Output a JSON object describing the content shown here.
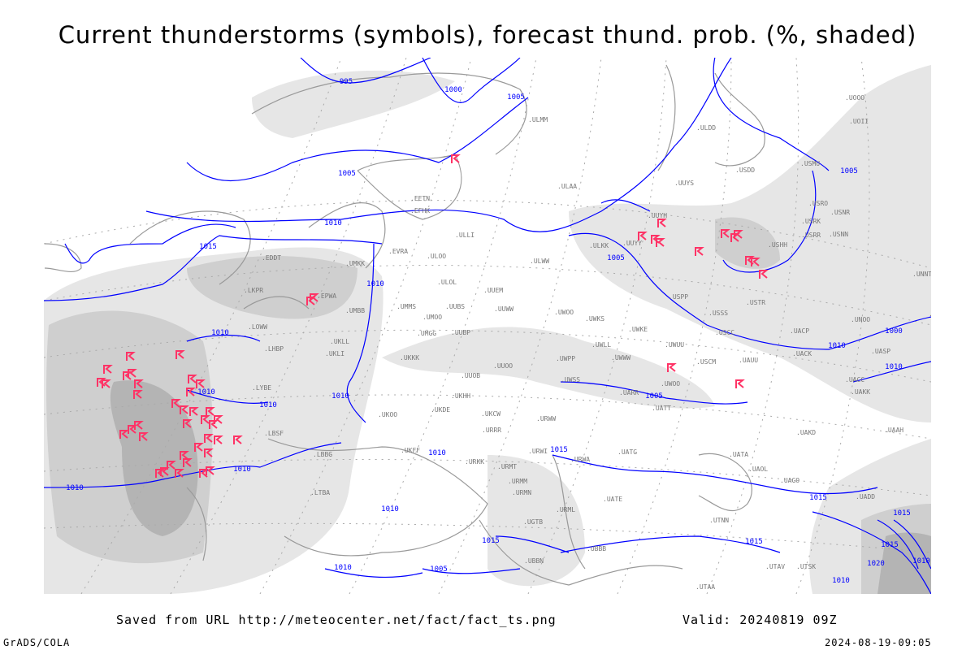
{
  "title": "Current thunderstorms (symbols), forecast thund. prob. (%, shaded)",
  "footer": {
    "source": "Saved from URL http://meteocenter.net/fact/fact_ts.png",
    "valid": "Valid: 20240819 09Z",
    "software": "GrADS/COLA",
    "timestamp": "2024-08-19-09:05"
  },
  "colors": {
    "isobar": "#0000ff",
    "storm_symbol": "#ff3366",
    "shade_light": "#e6e6e6",
    "shade_mid": "#cfcfcf",
    "shade_dark": "#b4b4b4",
    "coast": "#999999",
    "station": "#777777"
  },
  "legend": {
    "isobars_unit": "hPa",
    "symbol": "thunderstorm-icon"
  },
  "isobar_labels": [
    "995",
    "1000",
    "1005",
    "1005",
    "1010",
    "1015",
    "1010",
    "1010",
    "1010",
    "1010",
    "1010",
    "1005",
    "1005",
    "1000",
    "1005",
    "1010",
    "1010",
    "1015",
    "1010",
    "1010",
    "1010",
    "1005",
    "1010",
    "1015",
    "1015",
    "1015",
    "1015",
    "1020",
    "1010",
    "1010",
    "1015",
    "1010"
  ],
  "stations": [
    "ULMM",
    "ULAA",
    "ULLI",
    "EFHK",
    "EETN",
    "EVRA",
    "ULOO",
    "ULOL",
    "UUEM",
    "UUWW",
    "UMMS",
    "UMOO",
    "UUBS",
    "UMGG",
    "UUBP",
    "UKKK",
    "UUOO",
    "UUOB",
    "UKHH",
    "UKDE",
    "UKOO",
    "UKCW",
    "URRR",
    "URWI",
    "URMT",
    "URMM",
    "URMN",
    "UKFF",
    "URKK",
    "LBBG",
    "UMKK",
    "ULWW",
    "UWPP",
    "UWSS",
    "URWW",
    "UWKS",
    "UWKE",
    "UWLL",
    "UWWW",
    "UWUU",
    "UWOO",
    "UARR",
    "UATT",
    "USCM",
    "UAUU",
    "USSS",
    "USCC",
    "USPP",
    "USTR",
    "UUYY",
    "ULKK",
    "UUYH",
    "UUYS",
    "USDD",
    "ULDD",
    "USHH",
    "USRR",
    "USRK",
    "USRO",
    "USNR",
    "USNN",
    "USMU",
    "UOOO",
    "UOII",
    "UNNT",
    "UNBB",
    "UNOO",
    "UACP",
    "UACK",
    "UASP",
    "UACC",
    "UAKK",
    "UAKD",
    "UAAH",
    "UATA",
    "UAOL",
    "UAGO",
    "UATG",
    "URWA",
    "UATE",
    "URML",
    "UTNN",
    "UGTB",
    "UBBN",
    "UBBB",
    "UTAV",
    "UTSK",
    "UTAA",
    "UADD",
    "LTBA",
    "LBSF",
    "LYBE",
    "LHBP",
    "LOWW",
    "LKPR",
    "EPWA",
    "UMBB",
    "UKLL",
    "UKLI",
    "EDDT",
    "UWOO"
  ]
}
